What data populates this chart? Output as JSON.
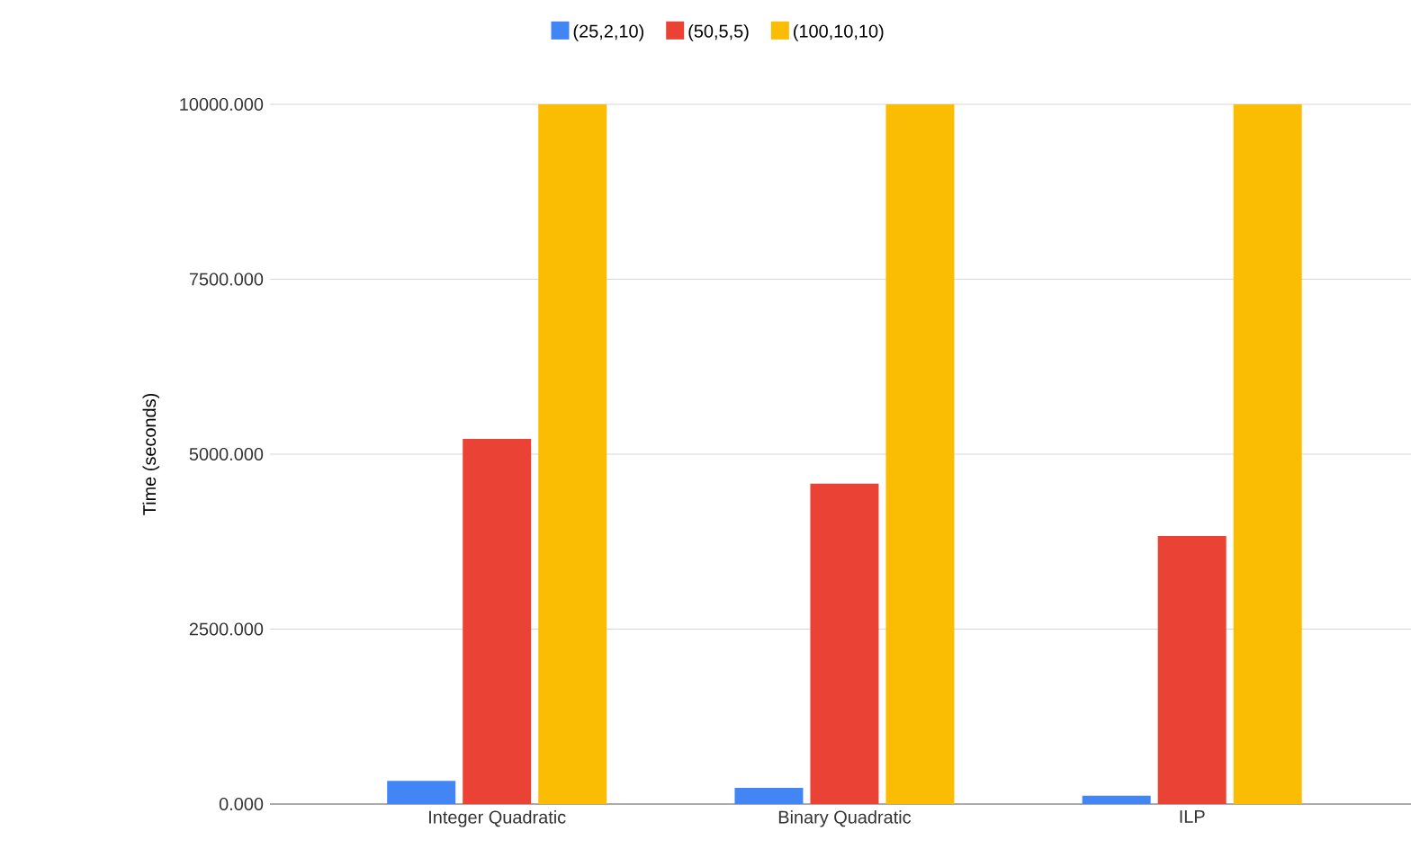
{
  "chart_data": {
    "type": "bar",
    "ylabel": "Time (seconds)",
    "categories": [
      "Integer Quadratic",
      "Binary Quadratic",
      "ILP"
    ],
    "series": [
      {
        "name": "(25,2,10)",
        "color": "#4285f4",
        "values": [
          330,
          230,
          120
        ]
      },
      {
        "name": "(50,5,5)",
        "color": "#ea4335",
        "values": [
          5220,
          4580,
          3830
        ]
      },
      {
        "name": "(100,10,10)",
        "color": "#fbbc04",
        "values": [
          10000,
          10000,
          10000
        ]
      }
    ],
    "ylim": [
      0,
      10000
    ],
    "yticks": [
      {
        "value": 0,
        "label": "0.000"
      },
      {
        "value": 2500,
        "label": "2500.000"
      },
      {
        "value": 5000,
        "label": "5000.000"
      },
      {
        "value": 7500,
        "label": "7500.000"
      },
      {
        "value": 10000,
        "label": "10000.000"
      }
    ],
    "grid": "y",
    "legend": "top"
  }
}
